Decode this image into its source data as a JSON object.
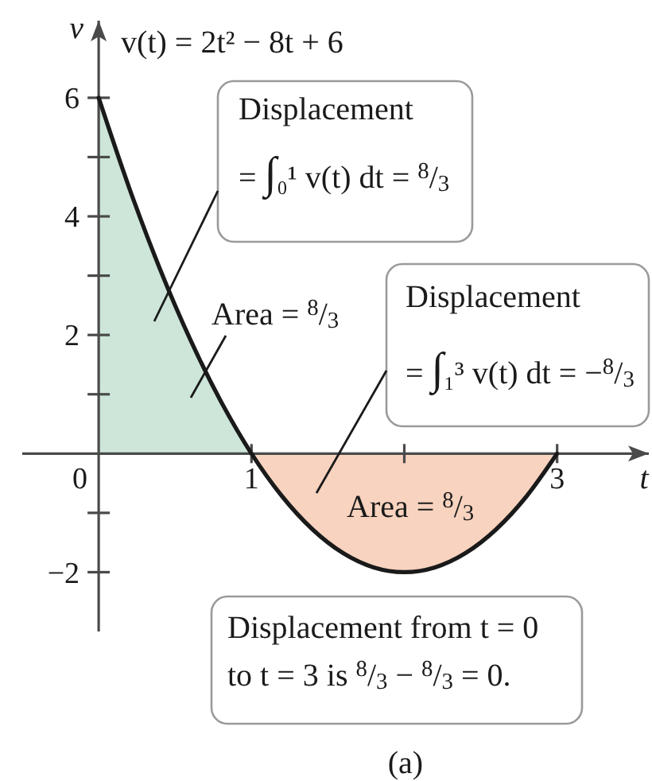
{
  "chart_data": {
    "type": "line",
    "title": "v(t) = 2t² − 8t + 6",
    "xlabel": "t",
    "ylabel": "v",
    "series": [
      {
        "type": "area",
        "color": "#cde6d9",
        "x": [
          0,
          0.2,
          0.4,
          0.6,
          0.8,
          1
        ],
        "values": [
          6,
          4.48,
          3.12,
          1.92,
          0.88,
          0
        ]
      },
      {
        "type": "area",
        "color": "#f8d3bf",
        "x": [
          1,
          1.2,
          1.4,
          1.6,
          1.8,
          2,
          2.2,
          2.4,
          2.6,
          2.8,
          3
        ],
        "values": [
          0,
          -0.72,
          -1.28,
          -1.68,
          -1.92,
          -2,
          -1.92,
          -1.68,
          -1.28,
          -0.72,
          0
        ]
      },
      {
        "color": "#1a1a1a",
        "x": [
          0,
          0.2,
          0.4,
          0.6,
          0.8,
          1,
          1.2,
          1.4,
          1.6,
          1.8,
          2,
          2.2,
          2.4,
          2.6,
          2.8,
          3
        ],
        "values": [
          6,
          4.48,
          3.12,
          1.92,
          0.88,
          0,
          -0.72,
          -1.28,
          -1.68,
          -1.92,
          -2,
          -1.92,
          -1.68,
          -1.28,
          -0.72,
          0
        ]
      }
    ],
    "xlim": [
      -0.5,
      3.6
    ],
    "ylim": [
      -3,
      7.3
    ],
    "xticks": [
      0,
      1,
      {
        "value": 2,
        "label": null
      },
      3
    ],
    "yticks": [
      {
        "value": -2,
        "label": "−2"
      },
      {
        "value": -1,
        "label": null
      },
      {
        "value": 1,
        "label": null
      },
      2,
      {
        "value": 3,
        "label": null
      },
      4,
      {
        "value": 5,
        "label": null
      },
      6
    ],
    "annotations": [
      "Displacement\n= ∫₀¹ v(t) dt = $^{8}$/$_{3}$",
      "Area = $^{8}$/$_{3}$",
      "Displacement\n= ∫₁³ v(t) dt = −$^{8}$/$_{3}$",
      "Area = $^{8}$/$_{3}$",
      "Displacement from t = 0\nto t = 3 is $^{8}$/$_{3}$ − $^{8}$/$_{3}$ = 0.",
      "(a)"
    ]
  }
}
